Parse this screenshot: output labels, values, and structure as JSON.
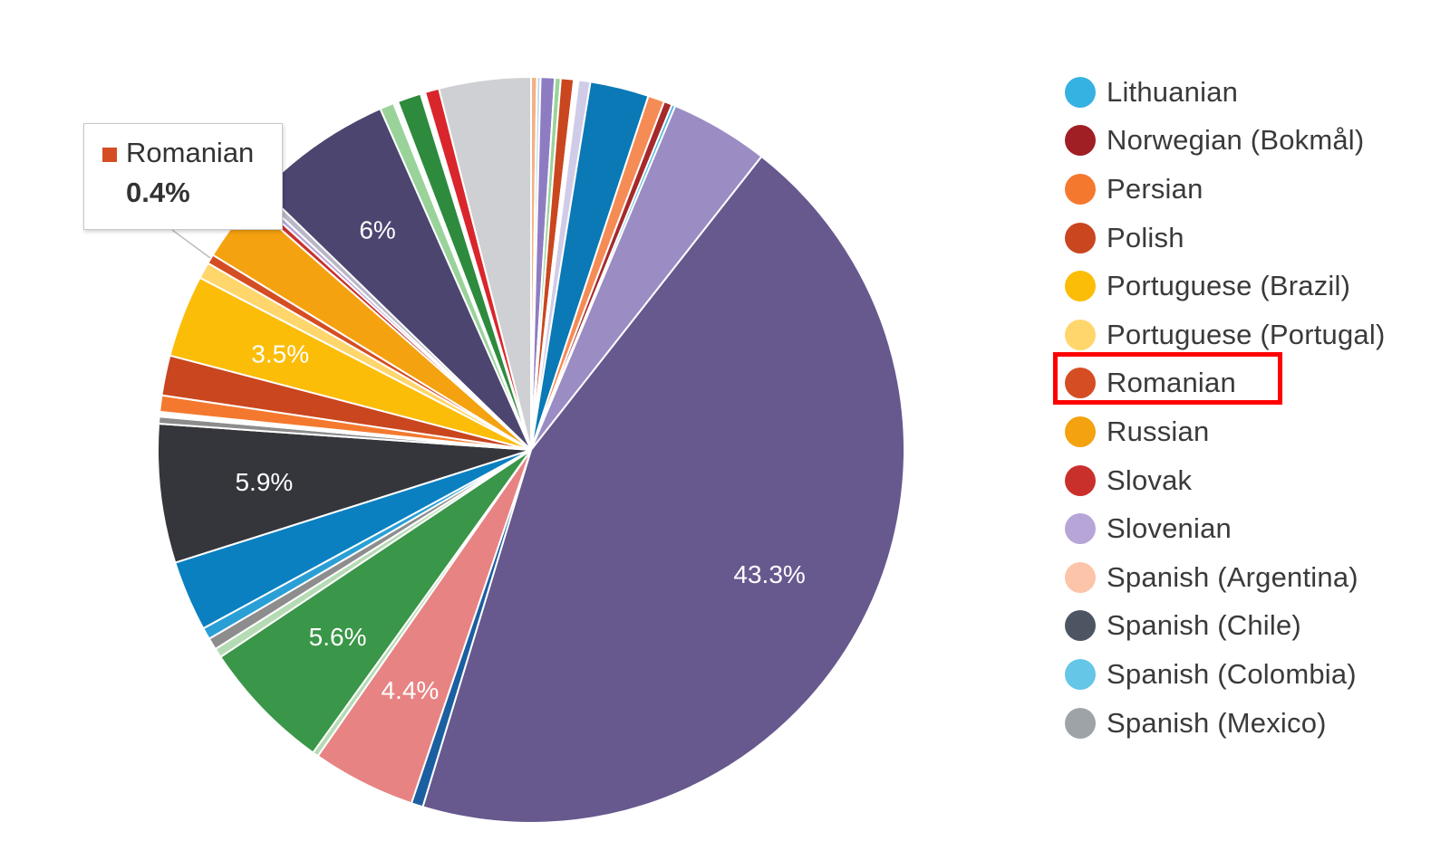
{
  "chart_data": {
    "type": "pie",
    "slices": [
      {
        "label": "",
        "value": 0.25,
        "color": "#f4b183"
      },
      {
        "label": "",
        "value": 0.15,
        "color": "#bdd7ee"
      },
      {
        "label": "",
        "value": 0.6,
        "color": "#8e7cc3"
      },
      {
        "label": "",
        "value": 0.25,
        "color": "#9ad39a"
      },
      {
        "label": "",
        "value": 0.55,
        "color": "#c9461f"
      },
      {
        "label": "",
        "value": 0.2,
        "color": "#ffffff"
      },
      {
        "label": "",
        "value": 0.5,
        "color": "#d0cce8"
      },
      {
        "label": "",
        "value": 2.5,
        "color": "#0a79b5"
      },
      {
        "label": "",
        "value": 0.7,
        "color": "#f58b55"
      },
      {
        "label": "",
        "value": 0.35,
        "color": "#a52a2a"
      },
      {
        "label": "",
        "value": 0.15,
        "color": "#4db7e0"
      },
      {
        "label": "",
        "value": 4.2,
        "color": "#9b8cc4",
        "display": ""
      },
      {
        "label": "",
        "value": 43.3,
        "color": "#67588e",
        "display": "43.3%"
      },
      {
        "label": "",
        "value": 0.5,
        "color": "#1b5fa0"
      },
      {
        "label": "",
        "value": 4.4,
        "color": "#e88383",
        "display": "4.4%"
      },
      {
        "label": "",
        "value": 0.25,
        "color": "#b5dbb5"
      },
      {
        "label": "",
        "value": 5.6,
        "color": "#3a9648",
        "display": "5.6%"
      },
      {
        "label": "",
        "value": 0.4,
        "color": "#b5dbb5"
      },
      {
        "label": "",
        "value": 0.5,
        "color": "#8d8d8d"
      },
      {
        "label": "",
        "value": 0.5,
        "color": "#2a9fd6"
      },
      {
        "label": "",
        "value": 3.0,
        "color": "#0a80c0"
      },
      {
        "label": "",
        "value": 5.9,
        "color": "#35363c",
        "display": "5.9%"
      },
      {
        "label": "",
        "value": 0.3,
        "color": "#8c8c8c"
      },
      {
        "label": "",
        "value": 0.2,
        "color": "#ffffff"
      },
      {
        "label": "",
        "value": 0.7,
        "color": "#f4792f"
      },
      {
        "label": "Polish",
        "value": 1.7,
        "color": "#c9461f"
      },
      {
        "label": "Portuguese (Brazil)",
        "value": 3.5,
        "color": "#fbbd08",
        "display": "3.5%"
      },
      {
        "label": "Portuguese (Portugal)",
        "value": 0.7,
        "color": "#ffd66b"
      },
      {
        "label": "Romanian",
        "value": 0.4,
        "color": "#d54e23"
      },
      {
        "label": "Russian",
        "value": 2.7,
        "color": "#f4a20f"
      },
      {
        "label": "Slovak",
        "value": 0.25,
        "color": "#c9302c"
      },
      {
        "label": "Slovenian",
        "value": 0.2,
        "color": "#b6a5d6"
      },
      {
        "label": "",
        "value": 0.3,
        "color": "#b8b8c8"
      },
      {
        "label": "",
        "value": 6.0,
        "color": "#4c4570",
        "display": "6%"
      },
      {
        "label": "",
        "value": 0.6,
        "color": "#9ad39a"
      },
      {
        "label": "",
        "value": 0.2,
        "color": "#ffffff"
      },
      {
        "label": "",
        "value": 1.0,
        "color": "#2e8b3e"
      },
      {
        "label": "",
        "value": 0.2,
        "color": "#ffffff"
      },
      {
        "label": "",
        "value": 0.6,
        "color": "#d9262c"
      },
      {
        "label": "",
        "value": 3.9,
        "color": "#cfd0d3"
      }
    ],
    "legend": [
      {
        "label": "Lithuanian",
        "color": "#35b2e1"
      },
      {
        "label": "Norwegian (Bokmål)",
        "color": "#a01f25"
      },
      {
        "label": "Persian",
        "color": "#f4792f"
      },
      {
        "label": "Polish",
        "color": "#c9461f"
      },
      {
        "label": "Portuguese (Brazil)",
        "color": "#fbbd08"
      },
      {
        "label": "Portuguese (Portugal)",
        "color": "#ffd66b"
      },
      {
        "label": "Romanian",
        "color": "#d54e23"
      },
      {
        "label": "Russian",
        "color": "#f4a20f"
      },
      {
        "label": "Slovak",
        "color": "#c9302c"
      },
      {
        "label": "Slovenian",
        "color": "#b6a5d6"
      },
      {
        "label": "Spanish (Argentina)",
        "color": "#fcc4a8"
      },
      {
        "label": "Spanish (Chile)",
        "color": "#4e5562"
      },
      {
        "label": "Spanish (Colombia)",
        "color": "#66c6e8"
      },
      {
        "label": "Spanish (Mexico)",
        "color": "#9ea3a8"
      }
    ],
    "legend_placement": "right",
    "highlighted_legend_item": "Romanian",
    "tooltip": {
      "label": "Romanian",
      "value": "0.4%"
    }
  }
}
